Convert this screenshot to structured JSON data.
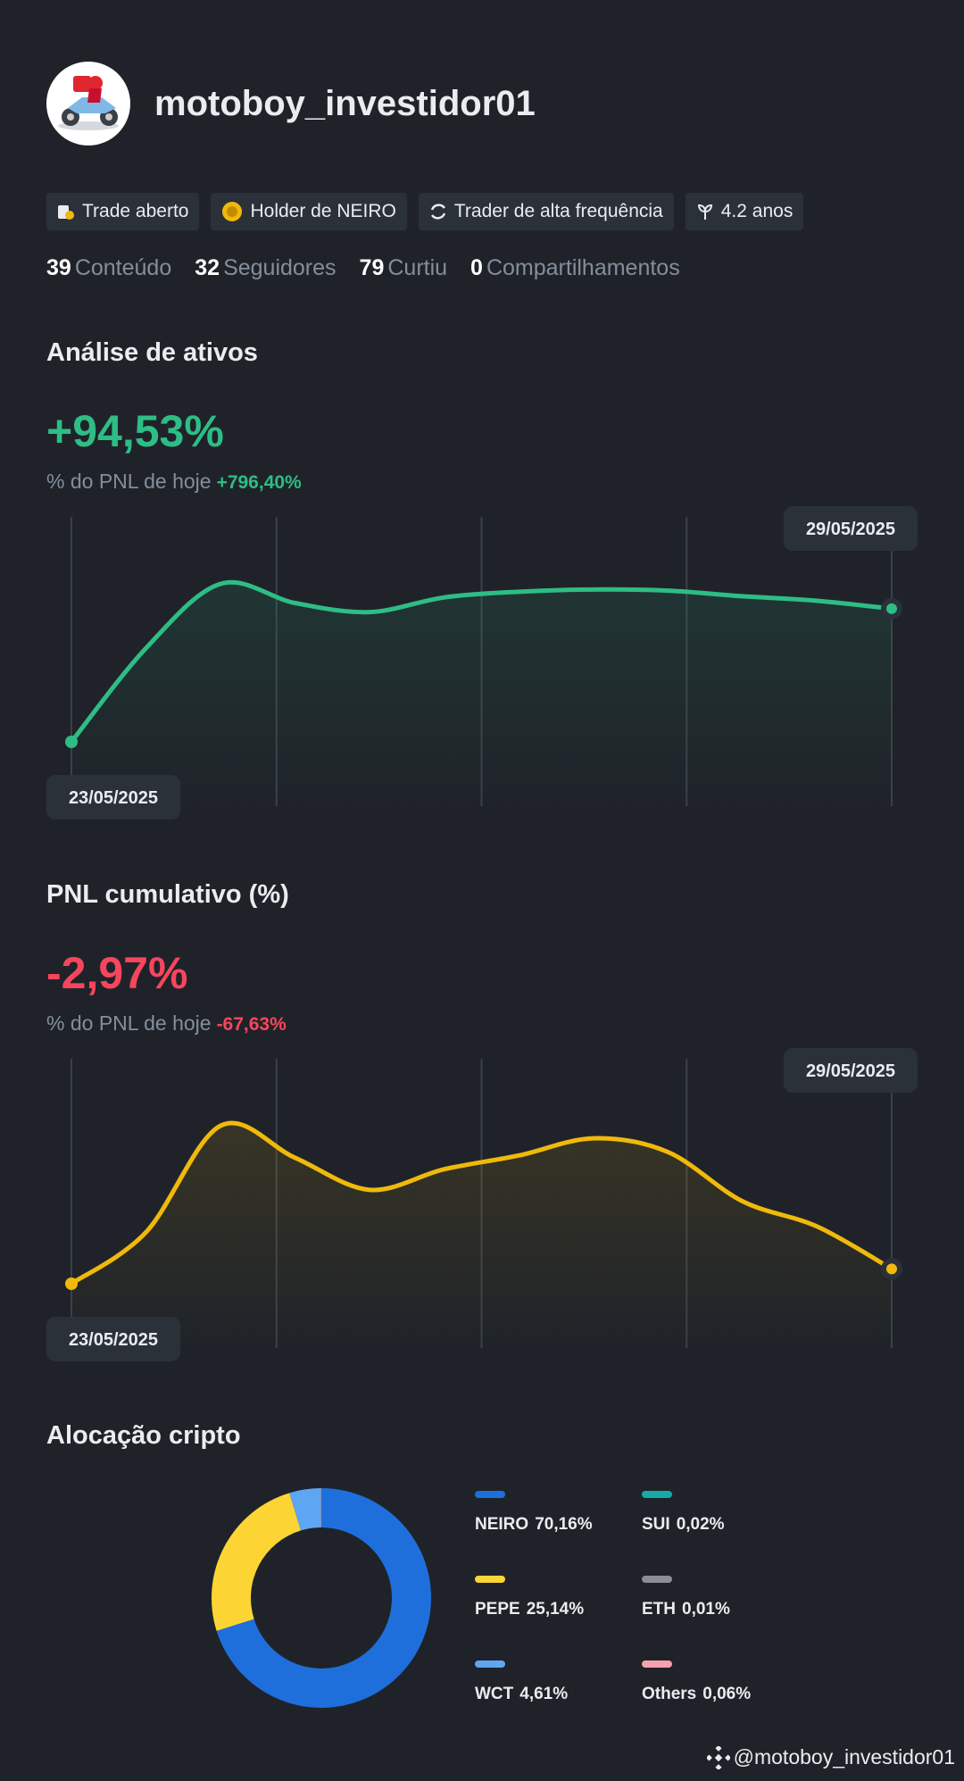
{
  "profile": {
    "username": "motoboy_investidor01",
    "badges": [
      "Trade aberto",
      "Holder de NEIRO",
      "Trader de alta frequência",
      "4.2 anos"
    ],
    "stats": [
      {
        "value": 39,
        "label": "Conteúdo"
      },
      {
        "value": 32,
        "label": "Seguidores"
      },
      {
        "value": 79,
        "label": "Curtiu"
      },
      {
        "value": 0,
        "label": "Compartilhamentos"
      }
    ]
  },
  "asset_analysis": {
    "title": "Análise de ativos",
    "value": "+94,53%",
    "subtitle": "% do PNL de hoje",
    "today": "+796,40%",
    "chart": {
      "type": "line",
      "color": "#2ebd85",
      "start_label": "23/05/2025",
      "end_label": "29/05/2025",
      "values": [
        0,
        83,
        140,
        123,
        115,
        128,
        133,
        135,
        134,
        129,
        125,
        118
      ]
    }
  },
  "cumulative_pnl": {
    "title": "PNL cumulativo (%)",
    "value": "-2,97%",
    "subtitle": "% do PNL de hoje",
    "today": "-67,63%",
    "chart": {
      "type": "line",
      "color": "#f0b90b",
      "start_label": "23/05/2025",
      "end_label": "29/05/2025",
      "values": [
        0,
        45,
        138,
        110,
        82,
        100,
        112,
        127,
        115,
        72,
        50,
        13
      ]
    }
  },
  "allocation": {
    "title": "Alocação cripto",
    "chart": {
      "type": "donut",
      "categories": [
        "NEIRO",
        "PEPE",
        "WCT",
        "SUI",
        "ETH",
        "Others"
      ],
      "values": [
        70.16,
        25.14,
        4.61,
        0.02,
        0.01,
        0.06
      ],
      "value_labels": [
        "70,16%",
        "25,14%",
        "4,61%",
        "0,02%",
        "0,01%",
        "0,06%"
      ],
      "colors": [
        "#1e6fdc",
        "#fcd535",
        "#5ea6f3",
        "#18a8a8",
        "#8a8d93",
        "#f6a1ad"
      ]
    }
  },
  "footer": "@motoboy_investidor01"
}
